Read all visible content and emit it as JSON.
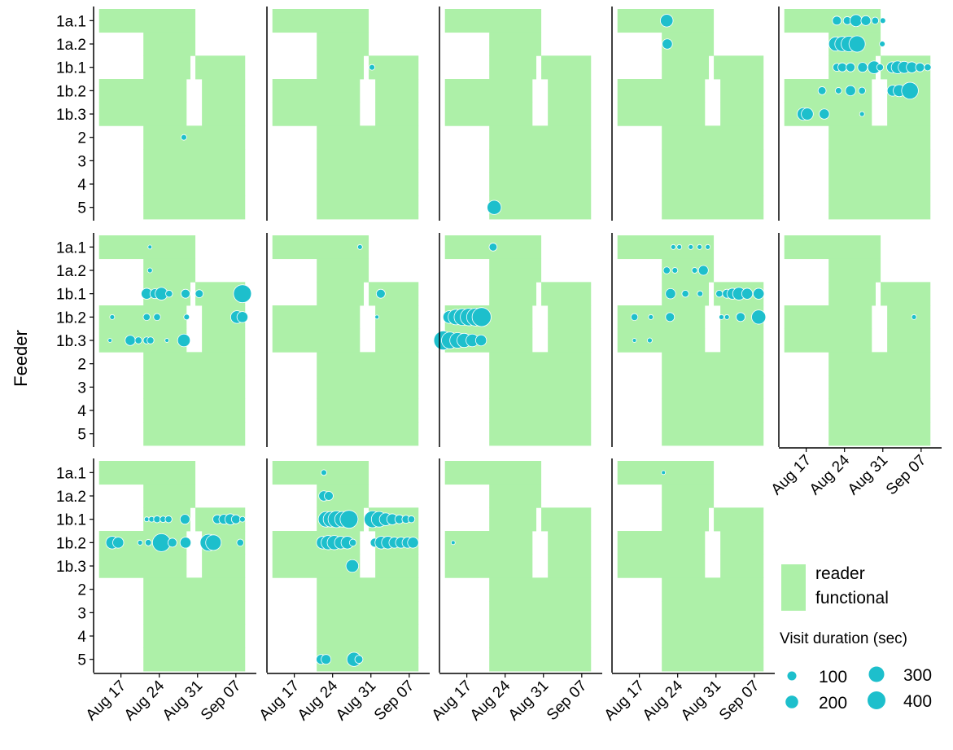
{
  "chart_data": {
    "type": "scatter",
    "y_label": "Feeder",
    "categories": [
      "1a.1",
      "1a.2",
      "1b.1",
      "1b.2",
      "1b.3",
      "2",
      "3",
      "4",
      "5"
    ],
    "xlim": [
      12,
      41
    ],
    "xticks": [
      {
        "value": 17,
        "label": "Aug 17"
      },
      {
        "value": 24,
        "label": "Aug 24"
      },
      {
        "value": 31,
        "label": "Aug 31"
      },
      {
        "value": 38,
        "label": "Sep 07"
      }
    ],
    "point_color": "#1dbfcc",
    "reader_functional": {
      "name": "reader functional",
      "color": "#adf0a8",
      "intervals": [
        [
          [
            13,
            30.6
          ]
        ],
        [
          [
            21.1,
            30.6
          ]
        ],
        [
          [
            21.1,
            29.7
          ],
          [
            30.6,
            39.7
          ]
        ],
        [
          [
            13,
            29
          ],
          [
            31.8,
            39.7
          ]
        ],
        [
          [
            13,
            29
          ],
          [
            31.8,
            39.7
          ]
        ],
        [
          [
            21.1,
            39.7
          ]
        ],
        [
          [
            21.1,
            39.7
          ]
        ],
        [
          [
            21.1,
            39.7
          ]
        ],
        [
          [
            21.1,
            39.7
          ]
        ]
      ]
    },
    "size_legend": {
      "title": "Visit duration (sec)",
      "breaks": [
        100,
        200,
        300,
        400
      ]
    },
    "panels": [
      {
        "x": [
          28.5
        ],
        "y": [
          "2"
        ],
        "sizes": [
          40
        ]
      },
      {
        "x": [
          31.2
        ],
        "y": [
          "1b.1"
        ],
        "sizes": [
          40
        ]
      },
      {
        "x": [
          22
        ],
        "y": [
          "5"
        ],
        "sizes": [
          250
        ]
      },
      {
        "x": [
          22,
          22.1
        ],
        "y": [
          "1a.1",
          "1a.2"
        ],
        "sizes": [
          200,
          130
        ]
      },
      {
        "x": [
          22.6,
          24.5,
          26.1,
          27.9,
          29.6,
          31.0,
          22.4,
          23.6,
          24.8,
          26.3,
          30.9,
          22.6,
          23.6,
          25.1,
          27.3,
          29.4,
          30.5,
          32.7,
          33.7,
          34.9,
          36.3,
          37.8,
          39.2,
          19.9,
          22.9,
          25.1,
          27.2,
          32.8,
          34.0,
          35.96,
          16.5,
          17.2,
          20.3,
          27.2
        ],
        "y": [
          "1a.1",
          "1a.1",
          "1a.1",
          "1a.1",
          "1a.1",
          "1a.1",
          "1a.2",
          "1a.2",
          "1a.2",
          "1a.2",
          "1a.2",
          "1b.1",
          "1b.1",
          "1b.1",
          "1b.1",
          "1b.1",
          "1b.1",
          "1b.1",
          "1b.1",
          "1b.1",
          "1b.1",
          "1b.1",
          "1b.1",
          "1b.2",
          "1b.2",
          "1b.2",
          "1b.2",
          "1b.2",
          "1b.2",
          "1b.2",
          "1b.3",
          "1b.3",
          "1b.3",
          "1b.3"
        ],
        "sizes": [
          100,
          80,
          180,
          120,
          60,
          40,
          250,
          280,
          300,
          330,
          40,
          80,
          100,
          100,
          120,
          200,
          60,
          150,
          200,
          180,
          150,
          100,
          60,
          80,
          50,
          130,
          60,
          150,
          180,
          350,
          200,
          180,
          130,
          30
        ]
      },
      {
        "x": [
          22.3,
          22.3,
          21.7,
          23.2,
          24.4,
          25.8,
          28.8,
          31.3,
          39.2,
          15.4,
          21.7,
          23.6,
          29,
          38.2,
          39.2,
          15,
          18.7,
          20.2,
          21.7,
          22.4,
          25.4,
          28.5
        ],
        "y": [
          "1a.1",
          "1a.2",
          "1b.1",
          "1b.1",
          "1b.1",
          "1b.1",
          "1b.1",
          "1b.1",
          "1b.1",
          "1b.2",
          "1b.2",
          "1b.2",
          "1b.2",
          "1b.2",
          "1b.2",
          "1b.3",
          "1b.3",
          "1b.3",
          "1b.3",
          "1b.3",
          "1b.3",
          "1b.3"
        ],
        "sizes": [
          20,
          30,
          150,
          120,
          200,
          60,
          100,
          80,
          400,
          30,
          60,
          60,
          40,
          200,
          150,
          20,
          130,
          60,
          60,
          60,
          20,
          200
        ]
      },
      {
        "x": [
          29,
          32.8,
          32.1
        ],
        "y": [
          "1a.1",
          "1b.1",
          "1b.2"
        ],
        "sizes": [
          30,
          100,
          20
        ]
      },
      {
        "x": [
          21.8,
          13.8,
          15,
          16.2,
          17.4,
          18.6,
          19.7,
          12.7,
          13.9,
          15.3,
          16.5,
          18,
          19.6
        ],
        "y": [
          "1a.1",
          "1b.2",
          "1b.2",
          "1b.2",
          "1b.2",
          "1b.2",
          "1b.2",
          "1b.3",
          "1b.3",
          "1b.3",
          "1b.3",
          "1b.3",
          "1b.3"
        ],
        "sizes": [
          80,
          200,
          300,
          350,
          380,
          400,
          450,
          450,
          350,
          300,
          250,
          200,
          150
        ]
      },
      {
        "x": [
          23.2,
          24.3,
          26.4,
          28,
          29.5,
          22,
          23.5,
          27.1,
          28.7,
          22.7,
          25.4,
          28.1,
          31.6,
          33,
          34,
          35.2,
          36.7,
          38.8,
          16.1,
          19.1,
          22.6,
          32,
          33,
          35.5,
          38.8,
          16.1,
          18.9
        ],
        "y": [
          "1a.1",
          "1a.1",
          "1a.1",
          "1a.1",
          "1a.1",
          "1a.2",
          "1a.2",
          "1a.2",
          "1a.2",
          "1b.1",
          "1b.1",
          "1b.1",
          "1b.1",
          "1b.1",
          "1b.1",
          "1b.1",
          "1b.1",
          "1b.1",
          "1b.2",
          "1b.2",
          "1b.2",
          "1b.2",
          "1b.2",
          "1b.2",
          "1b.2",
          "1b.3",
          "1b.3"
        ],
        "sizes": [
          30,
          30,
          30,
          30,
          30,
          60,
          40,
          40,
          120,
          130,
          60,
          40,
          60,
          100,
          150,
          200,
          150,
          150,
          60,
          30,
          100,
          30,
          30,
          100,
          250,
          20,
          30
        ]
      },
      {
        "x": [
          36.7
        ],
        "y": [
          "1b.2"
        ],
        "sizes": [
          30
        ]
      },
      {
        "x": [
          21.7,
          22.6,
          23.6,
          24.7,
          25.7,
          28.7,
          34.6,
          35.8,
          37,
          38,
          39.2,
          15.4,
          16.5,
          20.5,
          22,
          24.4,
          26.4,
          28.8,
          33,
          33.9,
          38.8
        ],
        "y": [
          "1b.1",
          "1b.1",
          "1b.1",
          "1b.1",
          "1b.1",
          "1b.1",
          "1b.1",
          "1b.1",
          "1b.1",
          "1b.1",
          "1b.1",
          "1b.2",
          "1b.2",
          "1b.2",
          "1b.2",
          "1b.2",
          "1b.2",
          "1b.2",
          "1b.2",
          "1b.2",
          "1b.2"
        ],
        "sizes": [
          30,
          40,
          60,
          50,
          60,
          120,
          100,
          120,
          150,
          100,
          40,
          200,
          150,
          30,
          50,
          400,
          100,
          150,
          350,
          300,
          60
        ]
      },
      {
        "x": [
          22.4,
          22.4,
          23.3,
          22.8,
          23.7,
          24.7,
          25.8,
          27,
          31.3,
          32.5,
          33.7,
          34.9,
          36.2,
          37.4,
          38.4,
          22.2,
          23.2,
          24.3,
          25.5,
          26.7,
          27.7,
          31.7,
          32.9,
          34.1,
          35.3,
          36.5,
          37.7,
          38.7,
          27.6,
          21.9,
          22.8,
          27.9,
          28.8
        ],
        "y": [
          "1a.1",
          "1a.2",
          "1a.2",
          "1b.1",
          "1b.1",
          "1b.1",
          "1b.1",
          "1b.1",
          "1b.1",
          "1b.1",
          "1b.1",
          "1b.1",
          "1b.1",
          "1b.1",
          "1b.1",
          "1b.2",
          "1b.2",
          "1b.2",
          "1b.2",
          "1b.2",
          "1b.2",
          "1b.2",
          "1b.2",
          "1b.2",
          "1b.2",
          "1b.2",
          "1b.2",
          "1b.2",
          "1b.3",
          "5",
          "5",
          "5",
          "5"
        ],
        "sizes": [
          40,
          130,
          100,
          300,
          300,
          350,
          300,
          400,
          350,
          300,
          200,
          150,
          100,
          80,
          60,
          200,
          250,
          250,
          200,
          200,
          60,
          100,
          200,
          200,
          150,
          150,
          150,
          150,
          200,
          120,
          120,
          250,
          80
        ]
      },
      {
        "x": [
          14.5
        ],
        "y": [
          "1b.2"
        ],
        "sizes": [
          20
        ]
      },
      {
        "x": [
          21.4
        ],
        "y": [
          "1a.1"
        ],
        "sizes": [
          20
        ]
      }
    ]
  }
}
